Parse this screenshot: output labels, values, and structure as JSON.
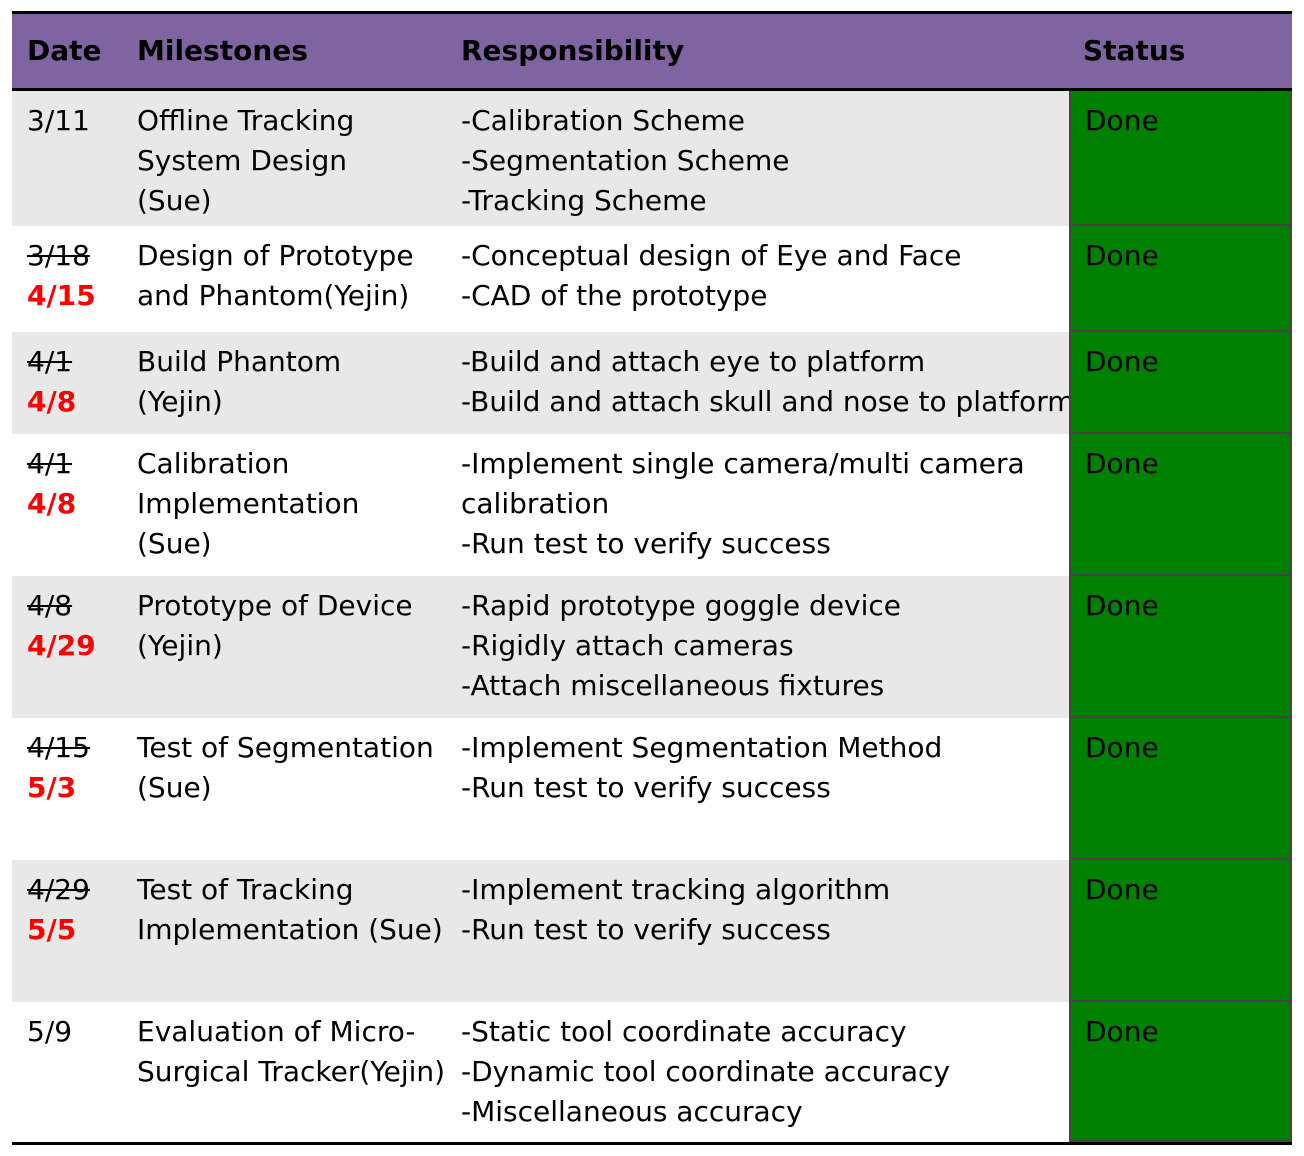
{
  "headers": {
    "date": "Date",
    "milestones": "Milestones",
    "responsibility": "Responsibility",
    "status": "Status"
  },
  "rows": [
    {
      "date": "3/11",
      "milestone": [
        "Offline Tracking",
        "System Design",
        "(Sue)"
      ],
      "responsibility": [
        "-Calibration Scheme",
        "-Segmentation Scheme",
        "-Tracking Scheme"
      ],
      "status": "Done"
    },
    {
      "old_date": "3/18",
      "new_date": "4/15",
      "milestone": [
        "Design of Prototype",
        "and Phantom(Yejin)"
      ],
      "responsibility": [
        "-Conceptual design of Eye and Face",
        "-CAD of the prototype"
      ],
      "status": "Done"
    },
    {
      "old_date": "4/1",
      "new_date": "4/8",
      "milestone": [
        "Build Phantom",
        "(Yejin)"
      ],
      "responsibility": [
        "-Build and attach eye to platform",
        "-Build and attach skull and nose to platform"
      ],
      "status": "Done"
    },
    {
      "old_date": "4/1",
      "new_date": "4/8",
      "milestone": [
        "Calibration",
        "Implementation",
        "(Sue)"
      ],
      "responsibility": [
        "-Implement single camera/multi camera",
        "calibration",
        "-Run test to verify success"
      ],
      "status": "Done"
    },
    {
      "old_date": "4/8",
      "new_date": "4/29",
      "milestone": [
        "Prototype of Device",
        "(Yejin)"
      ],
      "responsibility": [
        "-Rapid prototype goggle device",
        "-Rigidly attach cameras",
        "-Attach miscellaneous fixtures"
      ],
      "status": "Done"
    },
    {
      "old_date": "4/15",
      "new_date": "5/3",
      "milestone": [
        "Test of Segmentation",
        "(Sue)"
      ],
      "responsibility": [
        "-Implement Segmentation Method",
        "-Run test to verify success"
      ],
      "status": "Done"
    },
    {
      "old_date": "4/29",
      "new_date": "5/5",
      "milestone": [
        "Test of Tracking",
        "Implementation (Sue)"
      ],
      "responsibility": [
        "-Implement tracking algorithm",
        "-Run test to verify success"
      ],
      "status": "Done"
    },
    {
      "date": "5/9",
      "milestone": [
        "Evaluation of Micro-",
        "Surgical Tracker(Yejin)"
      ],
      "responsibility": [
        "-Static tool coordinate accuracy",
        "-Dynamic tool coordinate accuracy",
        "-Miscellaneous accuracy"
      ],
      "status": "Done"
    }
  ]
}
